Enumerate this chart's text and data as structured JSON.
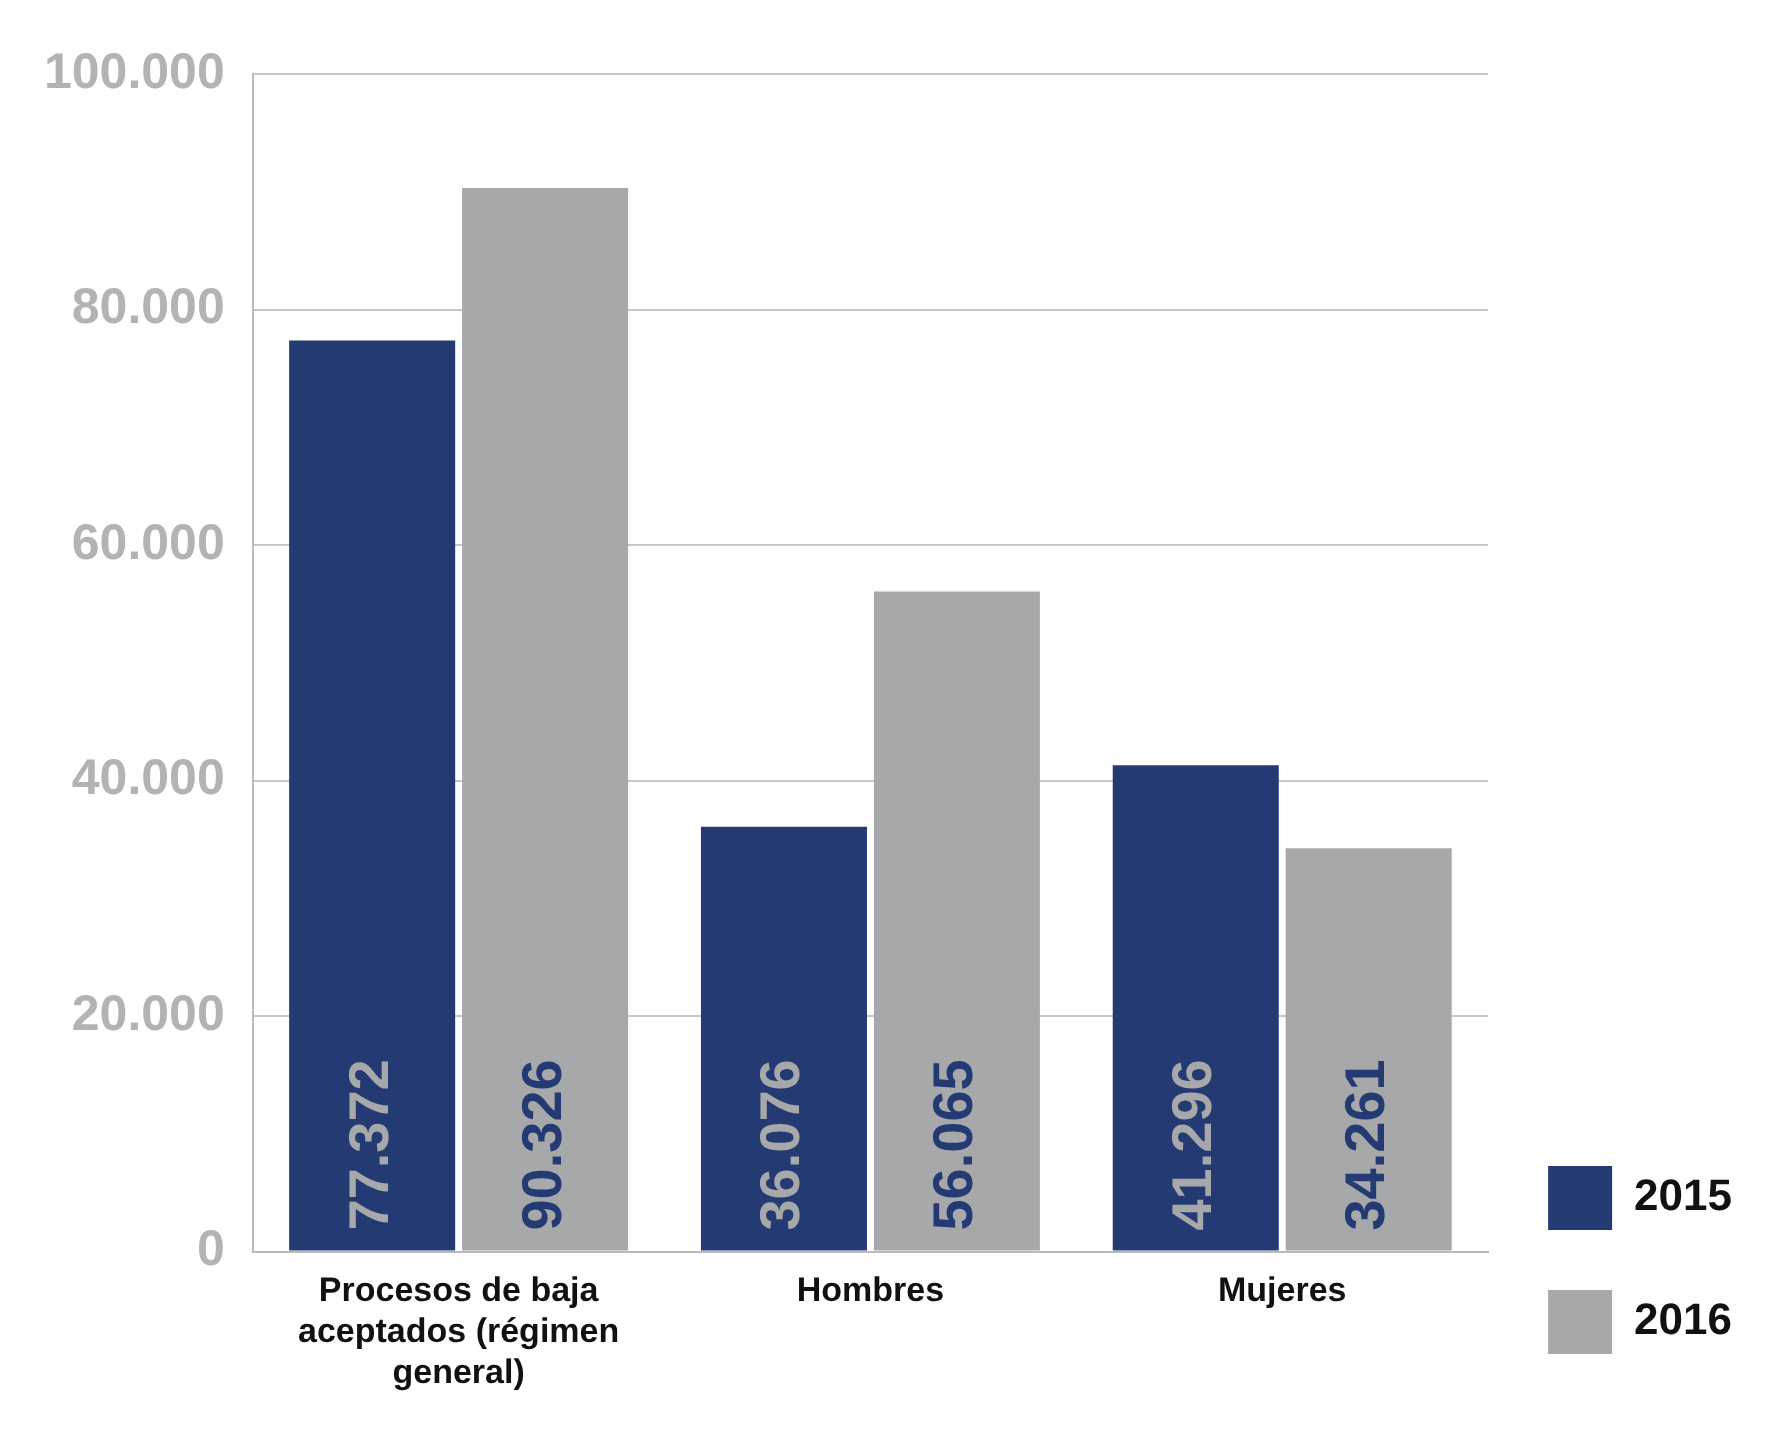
{
  "chart_data": {
    "type": "bar",
    "categories": [
      "Procesos de baja aceptados (régimen general)",
      "Hombres",
      "Mujeres"
    ],
    "series": [
      {
        "name": "2015",
        "color": "#243a73",
        "values": [
          77372,
          36076,
          41296
        ],
        "value_labels": [
          "77.372",
          "36.076",
          "41.296"
        ]
      },
      {
        "name": "2016",
        "color": "#a7a8a9",
        "values": [
          90326,
          56065,
          34261
        ],
        "value_labels": [
          "90.326",
          "56.065",
          "34.261"
        ]
      }
    ],
    "ylim": [
      0,
      100000
    ],
    "yticks": [
      {
        "value": 0,
        "label": "0"
      },
      {
        "value": 20000,
        "label": "20.000"
      },
      {
        "value": 40000,
        "label": "40.000"
      },
      {
        "value": 60000,
        "label": "60.000"
      },
      {
        "value": 80000,
        "label": "80.000"
      },
      {
        "value": 100000,
        "label": "100.000"
      }
    ],
    "grid": "y",
    "legend": "bottom right"
  }
}
